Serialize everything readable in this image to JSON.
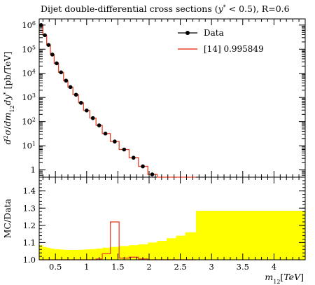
{
  "chart_data": {
    "title": "Dijet double-differential cross sections (y* < 0.5), R=0.6",
    "title_parts": {
      "pre": "Dijet double-differential cross sections (",
      "y": "y",
      "star": "*",
      "post": " < 0.5), R=0.6"
    },
    "colors": {
      "data": "#000000",
      "mc": "#e8432a",
      "band": "#ffff00"
    },
    "main": {
      "type": "line",
      "ylabel": "d²σ/dm₁₂dy* [pb/TeV]",
      "yscale": "log",
      "ylim": [
        0.5,
        1800000
      ],
      "yticks": [
        {
          "value": 1000000,
          "label": "10",
          "exp": "6"
        },
        {
          "value": 100000,
          "label": "10",
          "exp": "5"
        },
        {
          "value": 10000,
          "label": "10",
          "exp": "4"
        },
        {
          "value": 1000,
          "label": "10",
          "exp": "3"
        },
        {
          "value": 100,
          "label": "10",
          "exp": "2"
        },
        {
          "value": 10,
          "label": "10",
          "exp": "1"
        },
        {
          "value": 1,
          "label": "1",
          "exp": ""
        }
      ],
      "series": [
        {
          "name": "Data",
          "type": "scatter",
          "points": [
            [
              0.27,
              1000000
            ],
            [
              0.33,
              380000
            ],
            [
              0.39,
              150000
            ],
            [
              0.45,
              60000
            ],
            [
              0.52,
              26000
            ],
            [
              0.59,
              11000
            ],
            [
              0.67,
              5000
            ],
            [
              0.74,
              2700
            ],
            [
              0.83,
              1300
            ],
            [
              0.91,
              600
            ],
            [
              1.0,
              290
            ],
            [
              1.1,
              140
            ],
            [
              1.2,
              70
            ],
            [
              1.3,
              32
            ],
            [
              1.45,
              15
            ],
            [
              1.6,
              7
            ],
            [
              1.75,
              3.2
            ],
            [
              1.9,
              1.4
            ],
            [
              2.05,
              0.65
            ]
          ]
        },
        {
          "name": "[14] 0.995849",
          "type": "step",
          "edges": [
            0.24,
            0.3,
            0.36,
            0.42,
            0.48,
            0.55,
            0.63,
            0.7,
            0.78,
            0.87,
            0.95,
            1.05,
            1.15,
            1.25,
            1.38,
            1.52,
            1.68,
            1.83,
            1.98,
            2.13,
            2.28,
            2.43,
            2.58,
            2.75
          ],
          "values": [
            1000000,
            380000,
            150000,
            60000,
            26000,
            11000,
            5000,
            2700,
            1300,
            600,
            290,
            140,
            70,
            32,
            15,
            7,
            3.2,
            1.4,
            0.65,
            0.3,
            0.3,
            0.3,
            0.3
          ]
        }
      ]
    },
    "ratio": {
      "type": "step",
      "ylabel": "MC/Data",
      "ylim": [
        1.0,
        1.48
      ],
      "yticks": [
        {
          "value": 1.0,
          "label": "1.0"
        },
        {
          "value": 1.1,
          "label": "1.1"
        },
        {
          "value": 1.2,
          "label": "1.2"
        },
        {
          "value": 1.3,
          "label": "1.3"
        },
        {
          "value": 1.4,
          "label": "1.4"
        }
      ],
      "band": {
        "edges": [
          0.24,
          0.3,
          0.36,
          0.42,
          0.48,
          0.55,
          0.63,
          0.7,
          0.78,
          0.87,
          0.95,
          1.05,
          1.15,
          1.25,
          1.38,
          1.52,
          1.68,
          1.83,
          1.98,
          2.13,
          2.28,
          2.43,
          2.58,
          2.75,
          4.5
        ],
        "values": [
          1.085,
          1.075,
          1.07,
          1.065,
          1.062,
          1.06,
          1.058,
          1.057,
          1.057,
          1.058,
          1.06,
          1.062,
          1.065,
          1.07,
          1.075,
          1.08,
          1.085,
          1.09,
          1.1,
          1.11,
          1.125,
          1.14,
          1.16,
          1.285
        ]
      },
      "mc": {
        "edges": [
          0.24,
          0.3,
          0.36,
          0.42,
          0.48,
          0.55,
          0.63,
          0.7,
          0.78,
          0.87,
          0.95,
          1.05,
          1.15,
          1.25,
          1.38,
          1.52,
          1.68,
          1.83,
          1.98,
          2.13,
          2.28,
          2.43,
          2.58,
          2.75
        ],
        "values": [
          1.0,
          1.0,
          1.0,
          1.0,
          1.0,
          1.0,
          1.0,
          1.0,
          1.0,
          1.0,
          1.0,
          1.0,
          1.005,
          1.035,
          1.22,
          1.01,
          1.015,
          1.005,
          1.0,
          1.0,
          1.0,
          1.0,
          1.0
        ]
      }
    },
    "x": {
      "label": "m₁₂[TeV]",
      "xlim": [
        0.24,
        4.5
      ],
      "ticks": [
        0.5,
        1,
        1.5,
        2,
        2.5,
        3,
        3.5,
        4
      ],
      "ticklabels": [
        "0.5",
        "1",
        "1.5",
        "2",
        "2.5",
        "3",
        "3.5",
        "4"
      ]
    }
  }
}
